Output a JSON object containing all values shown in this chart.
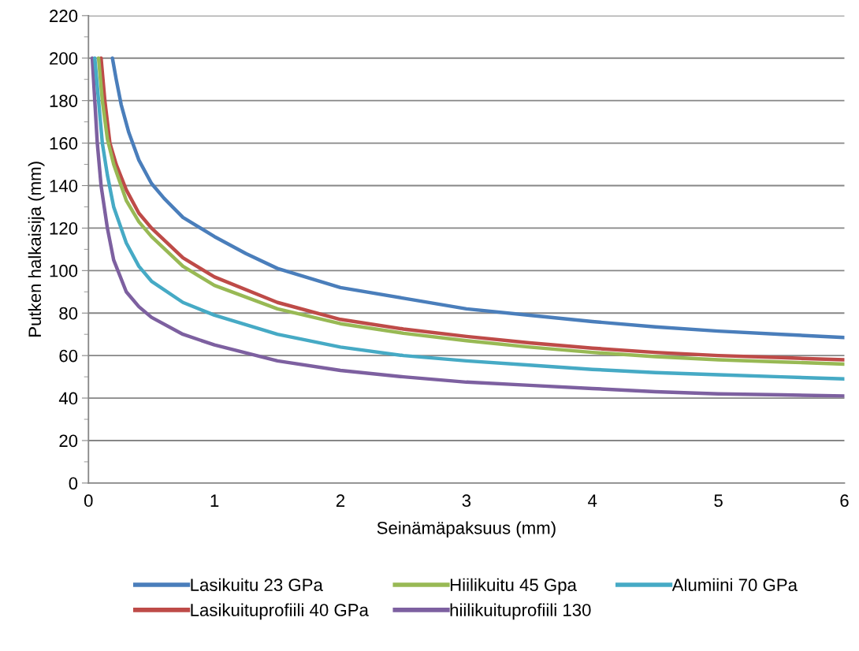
{
  "chart_data": {
    "type": "line",
    "xlabel": "Seinämäpaksuus (mm)",
    "ylabel": "Putken halkaisija (mm)",
    "xlim": [
      0,
      6
    ],
    "xticks": [
      0,
      1,
      2,
      3,
      4,
      5,
      6
    ],
    "ylim": [
      0,
      220
    ],
    "yticks": [
      0,
      20,
      40,
      60,
      80,
      100,
      120,
      140,
      160,
      180,
      200,
      220
    ],
    "grid": "y",
    "legend": "bottom",
    "marker": "none",
    "line_style": "solid",
    "series": [
      {
        "name": "Lasikuitu 23 GPa",
        "color": "#4a7ebb",
        "x": [
          0.19,
          0.22,
          0.26,
          0.32,
          0.4,
          0.5,
          0.6,
          0.75,
          1,
          1.25,
          1.5,
          2,
          2.5,
          3,
          3.5,
          4,
          4.5,
          5,
          5.5,
          6
        ],
        "values": [
          200,
          190,
          178,
          165,
          152,
          141,
          134,
          125,
          116,
          108,
          101,
          92,
          87,
          82,
          79,
          76,
          73.5,
          71.5,
          70,
          68.5
        ]
      },
      {
        "name": "Lasikuituprofiili 40 GPa",
        "color": "#be4b48",
        "x": [
          0.1,
          0.13,
          0.17,
          0.22,
          0.3,
          0.4,
          0.5,
          0.75,
          1,
          1.5,
          2,
          2.5,
          3,
          3.5,
          4,
          4.5,
          5,
          5.5,
          6
        ],
        "values": [
          200,
          180,
          160,
          150,
          138,
          127,
          120,
          106,
          97,
          85,
          77,
          72.5,
          69,
          66,
          63.5,
          61.5,
          60,
          59,
          58
        ]
      },
      {
        "name": "Hiilikuitu 45 Gpa",
        "color": "#98b954",
        "x": [
          0.08,
          0.11,
          0.15,
          0.2,
          0.3,
          0.4,
          0.5,
          0.75,
          1,
          1.5,
          2,
          2.5,
          3,
          3.5,
          4,
          4.5,
          5,
          5.5,
          6
        ],
        "values": [
          200,
          180,
          162,
          150,
          133,
          123,
          116,
          102,
          93,
          82,
          75,
          70.5,
          67,
          64,
          61.5,
          59.5,
          58,
          57,
          56
        ]
      },
      {
        "name": "hiilikuituprofiili 130",
        "color": "#7d60a0",
        "x": [
          0.03,
          0.05,
          0.07,
          0.1,
          0.15,
          0.2,
          0.3,
          0.4,
          0.5,
          0.75,
          1,
          1.5,
          2,
          2.5,
          3,
          3.5,
          4,
          4.5,
          5,
          5.5,
          6
        ],
        "values": [
          200,
          180,
          160,
          140,
          120,
          105,
          90,
          83,
          78,
          70,
          65,
          57.5,
          53,
          50,
          47.5,
          46,
          44.5,
          43,
          42,
          41.5,
          41
        ]
      },
      {
        "name": "Alumiini 70 GPa",
        "color": "#46aac5",
        "x": [
          0.05,
          0.08,
          0.11,
          0.15,
          0.2,
          0.3,
          0.4,
          0.5,
          0.75,
          1,
          1.5,
          2,
          2.5,
          3,
          3.5,
          4,
          4.5,
          5,
          5.5,
          6
        ],
        "values": [
          200,
          180,
          160,
          145,
          130,
          113,
          102,
          95,
          85,
          79,
          70,
          64,
          60,
          57.5,
          55.5,
          53.5,
          52,
          51,
          50,
          49
        ]
      }
    ]
  }
}
